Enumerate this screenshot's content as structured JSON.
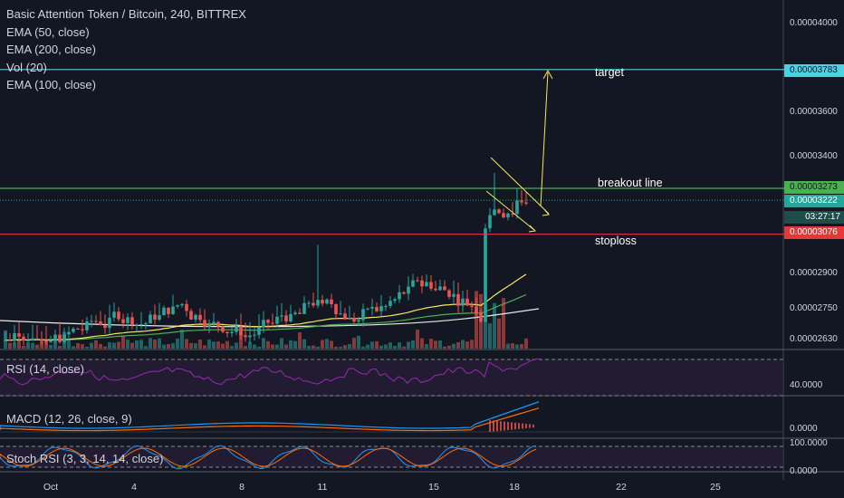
{
  "chart_data": {
    "type": "candlestick",
    "title": "Basic Attention Token / Bitcoin, 240, BITTREX",
    "indicators": [
      "EMA (50, close)",
      "EMA (200, close)",
      "Vol (20)",
      "EMA (100, close)"
    ],
    "panes": {
      "rsi": "RSI (14, close)",
      "macd": "MACD (12, 26, close, 9)",
      "stoch": "Stoch RSI (3, 3, 14, 14, close)"
    },
    "price_axis": {
      "ticks": [
        "0.00004000",
        "0.00003600",
        "0.00003400",
        "0.00002900",
        "0.00002750",
        "0.00002630"
      ],
      "ticks_values": [
        4e-05,
        3.6e-05,
        3.4e-05,
        2.9e-05,
        2.75e-05,
        2.63e-05
      ]
    },
    "levels": [
      {
        "name": "target",
        "value": 3.783e-05,
        "label": "0.00003783",
        "color": "#4dd0e1"
      },
      {
        "name": "breakout line",
        "value": 3.273e-05,
        "label": "0.00003273",
        "color": "#4caf50"
      },
      {
        "name": "stoploss",
        "value": 3.076e-05,
        "label": "0.00003076",
        "color": "#e53935"
      }
    ],
    "current_price": {
      "label": "0.00003222",
      "value": 3.222e-05
    },
    "countdown": "03:27:17",
    "rsi_axis": [
      "40.0000"
    ],
    "macd_axis": [
      "0.0000"
    ],
    "stoch_axis": [
      "100.0000",
      "0.0000"
    ],
    "x_ticks": [
      "Oct",
      "4",
      "8",
      "11",
      "15",
      "18",
      "22",
      "25"
    ],
    "x_ticks_dates": [
      "Oct 1",
      "Oct 4",
      "Oct 8",
      "Oct 11",
      "Oct 15",
      "Oct 18",
      "Oct 22",
      "Oct 25"
    ],
    "annotations": [
      "target",
      "breakout line",
      "stoploss"
    ]
  },
  "colors": {
    "up": "#26a69a",
    "down": "#ef5350",
    "ema50": "#f5e663",
    "ema100": "#4caf50",
    "ema200": "#ffffff",
    "rsi": "#9c27b0",
    "macd": "#2196f3",
    "signal": "#ff6d00"
  }
}
